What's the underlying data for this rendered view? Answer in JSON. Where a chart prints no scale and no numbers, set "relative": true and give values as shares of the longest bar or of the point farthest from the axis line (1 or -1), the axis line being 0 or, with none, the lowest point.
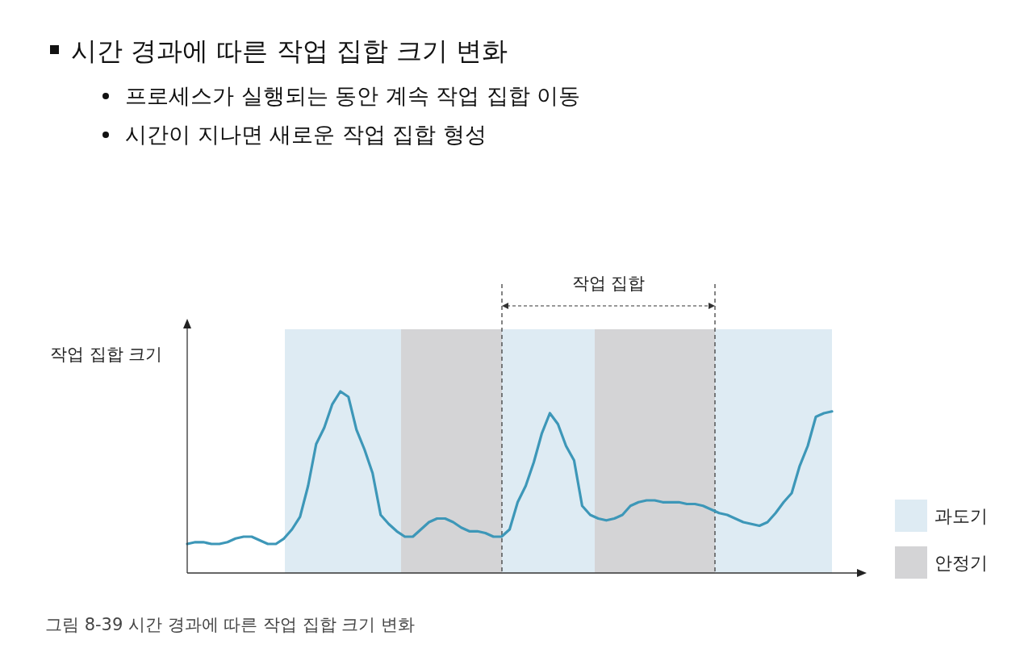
{
  "chart_data": {
    "type": "line",
    "relative": true,
    "title": "시간 경과에 따른 작업 집합 크기 변화",
    "ylabel": "작업 집합 크기",
    "annotations": [
      "프로세스가 실행되는 동안 계속 작업 집합 이동",
      "시간이 지나면 새로운 작업 집합 형성",
      "작업 집합",
      "그림 8-39  시간 경과에 따른 작업 집합 크기 변화",
      "과도기",
      "안정기"
    ],
    "categories": [
      null,
      null,
      null,
      null,
      null,
      null,
      null,
      null,
      null,
      null,
      null,
      null,
      null,
      null,
      null,
      null,
      null,
      null,
      null,
      null,
      null,
      null,
      null,
      null,
      null,
      null,
      null,
      null,
      null,
      null,
      null,
      null,
      null,
      null,
      null,
      null,
      null,
      null,
      null,
      null,
      null,
      null,
      null,
      null,
      null,
      null,
      null,
      null,
      null,
      null,
      null,
      null,
      null,
      null,
      null,
      null,
      null,
      null,
      null,
      null,
      null,
      null,
      null,
      null,
      null,
      null,
      null,
      null,
      null,
      null,
      null,
      null,
      null,
      null,
      null,
      null,
      null,
      null,
      null,
      null,
      null
    ],
    "series": [
      {
        "color": "#3d97b8",
        "values": [
          0.16,
          0.17,
          0.17,
          0.16,
          0.16,
          0.17,
          0.19,
          0.2,
          0.2,
          0.18,
          0.16,
          0.16,
          0.19,
          0.24,
          0.31,
          0.48,
          0.71,
          0.8,
          0.93,
          1,
          0.97,
          0.79,
          0.68,
          0.55,
          0.32,
          0.27,
          0.23,
          0.2,
          0.2,
          0.24,
          0.28,
          0.3,
          0.3,
          0.28,
          0.25,
          0.23,
          0.23,
          0.22,
          0.2,
          0.2,
          0.24,
          0.39,
          0.48,
          0.61,
          0.77,
          0.88,
          0.82,
          0.7,
          0.62,
          0.37,
          0.32,
          0.3,
          0.29,
          0.3,
          0.32,
          0.37,
          0.39,
          0.4,
          0.4,
          0.39,
          0.39,
          0.39,
          0.38,
          0.38,
          0.37,
          0.35,
          0.33,
          0.32,
          0.3,
          0.28,
          0.27,
          0.26,
          0.28,
          0.33,
          0.39,
          0.44,
          0.59,
          0.7,
          0.86,
          0.88,
          0.89
        ]
      }
    ],
    "marker": "none",
    "line_style": "solid"
  }
}
